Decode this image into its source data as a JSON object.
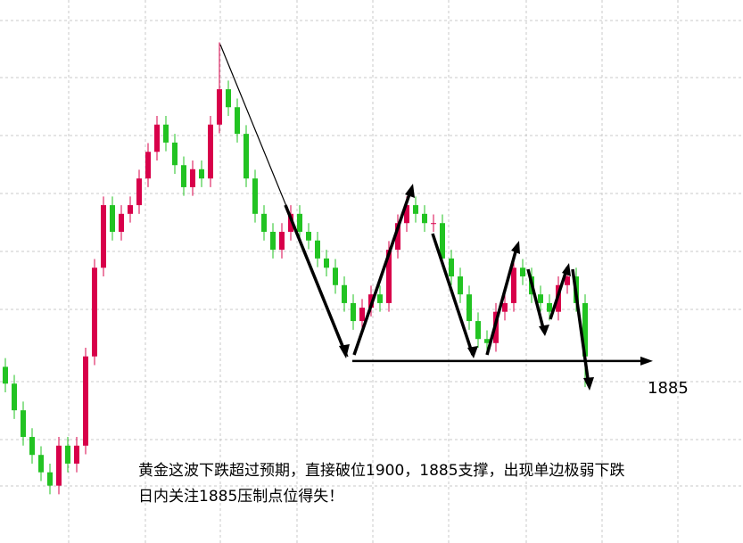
{
  "chart_data": {
    "type": "candlestick",
    "up_color": "#d8004a",
    "down_color": "#22c322",
    "ylim": [
      1853.6,
      1947.3
    ],
    "grid": true,
    "open": [
      1884,
      1881.1,
      1876.5,
      1871.9,
      1868.8,
      1865.8,
      1863.5,
      1870.4,
      1867.3,
      1870.4,
      1885.8,
      1901.1,
      1911.9,
      1907.3,
      1910.4,
      1911.9,
      1916.5,
      1921.1,
      1925.8,
      1922.7,
      1918.8,
      1915.0,
      1918.1,
      1916.5,
      1925.8,
      1931.9,
      1928.8,
      1924.2,
      1916.5,
      1910.4,
      1907.3,
      1904.2,
      1907.3,
      1910.4,
      1907.3,
      1905.8,
      1902.7,
      1901.1,
      1898.1,
      1895.0,
      1891.9,
      1894.2,
      1896.5,
      1895.0,
      1904.2,
      1908.8,
      1911.9,
      1910.4,
      1908.8,
      1908.8,
      1902.7,
      1899.6,
      1896.5,
      1891.9,
      1888.8,
      1888.1,
      1893.5,
      1895.0,
      1901.1,
      1899.6,
      1896.5,
      1895.0,
      1893.5,
      1898.1,
      1899.6,
      1895.0
    ],
    "high": [
      1885.5,
      1882.6,
      1878,
      1873.4,
      1870.3,
      1867.3,
      1871.9,
      1871.9,
      1871.9,
      1887.3,
      1902.6,
      1913.4,
      1913.4,
      1911.9,
      1913.4,
      1918,
      1922.6,
      1927.3,
      1927.3,
      1924.2,
      1920.3,
      1919.6,
      1919.6,
      1927.3,
      1940,
      1933.4,
      1930.3,
      1925.7,
      1918,
      1911.9,
      1908.8,
      1908.8,
      1911.9,
      1911.9,
      1908.8,
      1907.3,
      1904.2,
      1902.6,
      1899.6,
      1896.5,
      1895.7,
      1898,
      1898,
      1905.7,
      1910.3,
      1913.4,
      1913.4,
      1911.9,
      1910.3,
      1910.3,
      1904.2,
      1901.1,
      1898,
      1893.4,
      1890.3,
      1895,
      1896.5,
      1902.6,
      1902.6,
      1901.1,
      1898,
      1896.5,
      1899.6,
      1901.1,
      1901.1,
      1896.5
    ],
    "low": [
      1879.6,
      1875,
      1870.4,
      1867.3,
      1864.3,
      1862,
      1862,
      1865.8,
      1865.8,
      1868.9,
      1884.3,
      1899.6,
      1905.8,
      1905.8,
      1908.9,
      1910.4,
      1915,
      1919.6,
      1921.2,
      1917.3,
      1913.5,
      1913.5,
      1915,
      1915,
      1924.3,
      1927.3,
      1922.7,
      1915,
      1908.9,
      1905.8,
      1902.7,
      1902.7,
      1905.8,
      1905.8,
      1904.3,
      1901.2,
      1899.6,
      1896.6,
      1893.5,
      1890.4,
      1890.4,
      1892.7,
      1893.5,
      1893.5,
      1902.7,
      1907.3,
      1908.9,
      1907.3,
      1907.3,
      1901.2,
      1898.1,
      1895,
      1890.4,
      1887.3,
      1886.6,
      1886.6,
      1892,
      1893.5,
      1898.1,
      1895,
      1893.5,
      1892,
      1892,
      1896.6,
      1893.5,
      1880.5
    ],
    "close": [
      1881.1,
      1876.5,
      1871.9,
      1868.8,
      1865.8,
      1863.5,
      1870.4,
      1867.3,
      1870.4,
      1885.8,
      1901.1,
      1911.9,
      1907.3,
      1910.4,
      1911.9,
      1916.5,
      1921.1,
      1925.8,
      1922.7,
      1918.8,
      1915.0,
      1918.1,
      1916.5,
      1925.8,
      1931.9,
      1928.8,
      1924.2,
      1916.5,
      1910.4,
      1907.3,
      1904.2,
      1907.3,
      1910.4,
      1907.3,
      1905.8,
      1902.7,
      1901.1,
      1898.1,
      1895.0,
      1891.9,
      1894.2,
      1896.5,
      1895.0,
      1904.2,
      1908.8,
      1911.9,
      1910.4,
      1908.8,
      1908.8,
      1902.7,
      1899.6,
      1896.5,
      1891.9,
      1888.8,
      1888.1,
      1893.5,
      1895.0,
      1901.1,
      1899.6,
      1896.5,
      1895.0,
      1893.5,
      1898.1,
      1899.6,
      1895.0,
      1885.8
    ],
    "level": {
      "value": 1885,
      "label": "1885"
    },
    "annotations": [
      "黄金这波下跌超过预期，直接破位1900，1885支撑，出现单边极弱下跌",
      "日内关注1885压制点位得失！"
    ]
  }
}
